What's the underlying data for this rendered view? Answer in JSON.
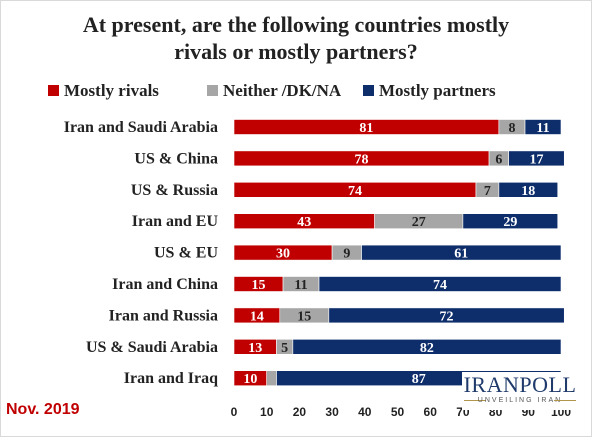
{
  "title_lines": [
    "At present, are the following countries mostly",
    "rivals or mostly partners?"
  ],
  "note": "Nov. 2019",
  "logo": {
    "name": "IRANPOLL",
    "tagline": "UNVEILING IRAN"
  },
  "colors": {
    "rivals": "#c00000",
    "neither": "#a6a6a6",
    "partners": "#0d2d6b"
  },
  "chart_data": {
    "type": "bar",
    "orientation": "horizontal",
    "stacked": true,
    "categories": [
      "Iran and Saudi Arabia",
      "US & China",
      "US & Russia",
      "Iran and EU",
      "US & EU",
      "Iran and China",
      "Iran and Russia",
      "US & Saudi Arabia",
      "Iran and Iraq"
    ],
    "series": [
      {
        "name": "Mostly rivals",
        "color": "#c00000",
        "values": [
          81,
          78,
          74,
          43,
          30,
          15,
          14,
          13,
          10
        ]
      },
      {
        "name": "Neither /DK/NA",
        "color": "#a6a6a6",
        "values": [
          8,
          6,
          7,
          27,
          9,
          11,
          15,
          5,
          3
        ]
      },
      {
        "name": "Mostly partners",
        "color": "#0d2d6b",
        "values": [
          11,
          17,
          18,
          29,
          61,
          74,
          72,
          82,
          87
        ]
      }
    ],
    "value_labels": [
      [
        "81",
        "8",
        "11"
      ],
      [
        "78",
        "6",
        "17"
      ],
      [
        "74",
        "7",
        "18"
      ],
      [
        "43",
        "27",
        "29"
      ],
      [
        "30",
        "9",
        "61"
      ],
      [
        "15",
        "11",
        "74"
      ],
      [
        "14",
        "15",
        "72"
      ],
      [
        "13",
        "5",
        "82"
      ],
      [
        "10",
        "",
        "87"
      ]
    ],
    "x_ticks": [
      "0",
      "10",
      "20",
      "30",
      "40",
      "50",
      "60",
      "70",
      "80",
      "90",
      "100"
    ],
    "xlim": [
      0,
      100
    ],
    "grid": false,
    "legend_position": "top"
  }
}
